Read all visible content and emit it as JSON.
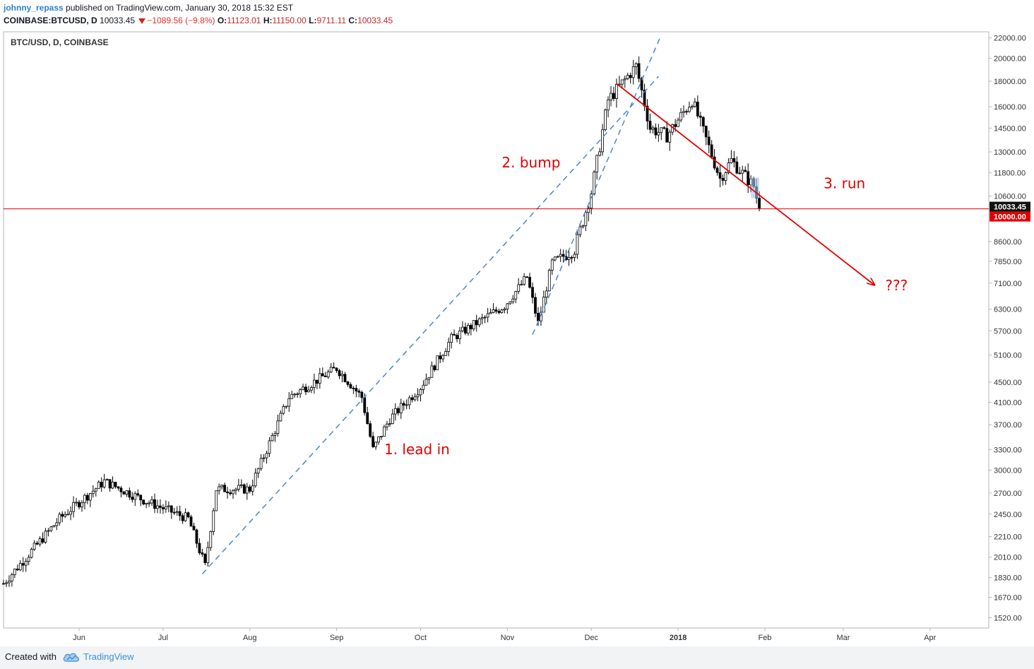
{
  "header": {
    "author": "johnny_repass",
    "published": "published on TradingView.com, January 30, 2018 15:32 EST",
    "symbol": "COINBASE:BTCUSD, D",
    "last": "10033.45",
    "change": "−1089.56 (−9.8%)",
    "o_label": "O:",
    "o_value": "11123.01",
    "h_label": "H:",
    "h_value": "11150.00",
    "l_label": "L:",
    "l_value": "9711.11",
    "c_label": "C:",
    "c_value": "10033.45"
  },
  "footer": {
    "created_with": "Created with",
    "brand": "TradingView"
  },
  "chart_data": {
    "type": "candlestick",
    "title": "BTC/USD, D, COINBASE",
    "scale": "log",
    "grid": false,
    "ylim": [
      1450,
      22600
    ],
    "y_ticks": [
      "22000.00",
      "20000.00",
      "18000.00",
      "16000.00",
      "14500.00",
      "13000.00",
      "11800.00",
      "10600.00",
      "8600.00",
      "7850.00",
      "7100.00",
      "6300.00",
      "5700.00",
      "5100.00",
      "4500.00",
      "4100.00",
      "3700.00",
      "3300.00",
      "3000.00",
      "2700.00",
      "2450.00",
      "2210.00",
      "2010.00",
      "1830.00",
      "1670.00",
      "1520.00"
    ],
    "x_range": [
      "2017-05-05",
      "2018-04-22"
    ],
    "x_ticks": [
      {
        "label": "Jun",
        "date": "2017-06-01"
      },
      {
        "label": "Jul",
        "date": "2017-07-01"
      },
      {
        "label": "Aug",
        "date": "2017-08-01"
      },
      {
        "label": "Sep",
        "date": "2017-09-01"
      },
      {
        "label": "Oct",
        "date": "2017-10-01"
      },
      {
        "label": "Nov",
        "date": "2017-11-01"
      },
      {
        "label": "Dec",
        "date": "2017-12-01"
      },
      {
        "label": "2018",
        "date": "2018-01-01",
        "bold": true
      },
      {
        "label": "Feb",
        "date": "2018-02-01"
      },
      {
        "label": "Mar",
        "date": "2018-03-01"
      },
      {
        "label": "Apr",
        "date": "2018-04-01"
      }
    ],
    "anchors": [
      {
        "date": "2017-05-05",
        "price": 1780
      },
      {
        "date": "2017-05-25",
        "price": 2400
      },
      {
        "date": "2017-06-10",
        "price": 2850
      },
      {
        "date": "2017-06-25",
        "price": 2600
      },
      {
        "date": "2017-07-10",
        "price": 2400
      },
      {
        "date": "2017-07-16",
        "price": 1930
      },
      {
        "date": "2017-07-20",
        "price": 2750
      },
      {
        "date": "2017-08-01",
        "price": 2750
      },
      {
        "date": "2017-08-15",
        "price": 4200
      },
      {
        "date": "2017-09-01",
        "price": 4800
      },
      {
        "date": "2017-09-10",
        "price": 4200
      },
      {
        "date": "2017-09-14",
        "price": 3300
      },
      {
        "date": "2017-09-20",
        "price": 3800
      },
      {
        "date": "2017-10-01",
        "price": 4400
      },
      {
        "date": "2017-10-12",
        "price": 5500
      },
      {
        "date": "2017-10-31",
        "price": 6400
      },
      {
        "date": "2017-11-08",
        "price": 7300
      },
      {
        "date": "2017-11-12",
        "price": 5900
      },
      {
        "date": "2017-11-17",
        "price": 7800
      },
      {
        "date": "2017-11-25",
        "price": 8300
      },
      {
        "date": "2017-12-01",
        "price": 10800
      },
      {
        "date": "2017-12-07",
        "price": 16500
      },
      {
        "date": "2017-12-17",
        "price": 19300
      },
      {
        "date": "2017-12-22",
        "price": 14500
      },
      {
        "date": "2017-12-28",
        "price": 14000
      },
      {
        "date": "2018-01-06",
        "price": 16500
      },
      {
        "date": "2018-01-16",
        "price": 11500
      },
      {
        "date": "2018-01-20",
        "price": 12500
      },
      {
        "date": "2018-01-28",
        "price": 11100
      },
      {
        "date": "2018-01-30",
        "price": 10033
      }
    ],
    "last_price": {
      "value": 10033.45,
      "label": "10033.45"
    },
    "horizontal_line": {
      "value": 10000,
      "label": "10000.00",
      "color": "#e00000"
    },
    "trendlines": [
      {
        "name": "lead-in",
        "style": "dashed",
        "color": "#4a86d0",
        "from": {
          "date": "2017-07-15",
          "price": 1860
        },
        "to": {
          "date": "2017-12-25",
          "price": 18400
        }
      },
      {
        "name": "steep",
        "style": "dashed",
        "color": "#4a86d0",
        "from": {
          "date": "2017-11-10",
          "price": 5600
        },
        "to": {
          "date": "2017-12-26",
          "price": 22300
        }
      },
      {
        "name": "run",
        "style": "solid",
        "color": "#e00000",
        "arrow": true,
        "from": {
          "date": "2017-12-10",
          "price": 17800
        },
        "to": {
          "date": "2018-03-12",
          "price": 7050
        }
      }
    ],
    "annotations": [
      {
        "text": "1. lead in",
        "date": "2017-09-18",
        "price": 3230,
        "color": "#e00000"
      },
      {
        "text": "2. bump",
        "date": "2017-10-30",
        "price": 12100,
        "color": "#e00000"
      },
      {
        "text": "3. run",
        "date": "2018-02-22",
        "price": 11000,
        "color": "#e00000"
      },
      {
        "text": "???",
        "date": "2018-03-16",
        "price": 6870,
        "color": "#e00000"
      }
    ],
    "highlight": {
      "from": "2018-01-27",
      "to": "2018-01-30",
      "low": 10500,
      "high": 11550,
      "color": "#a9c4f0"
    },
    "colors": {
      "candle": "#000000",
      "bull_fill": "#ffffff",
      "bear_fill": "#000000",
      "axis_text": "#333333",
      "axis_line": "#b2b5be"
    }
  }
}
